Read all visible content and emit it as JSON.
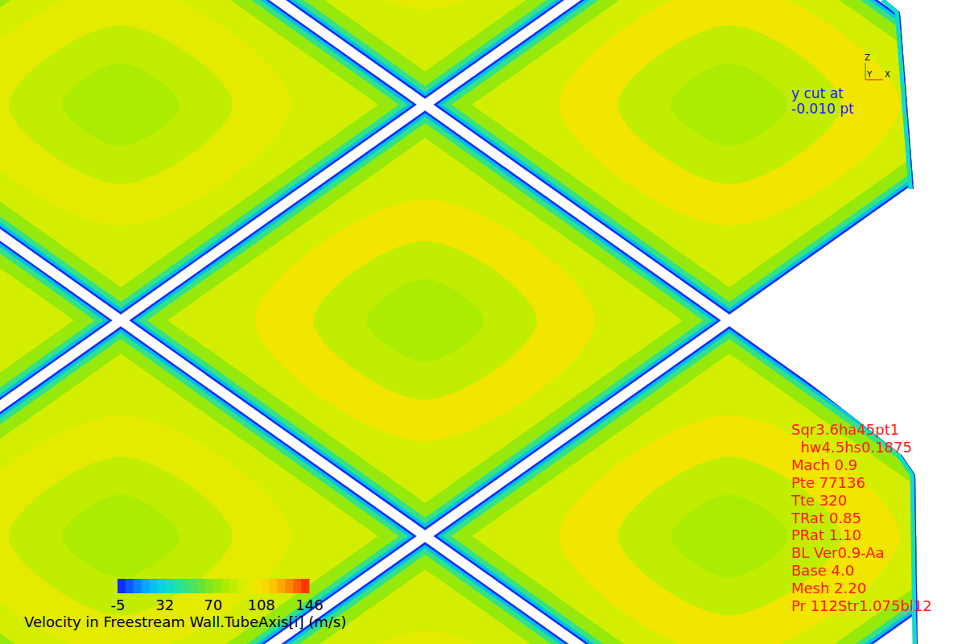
{
  "chart_data": {
    "type": "contour",
    "title": "Velocity in Freestream Wall.TubeAxis[i] (m/s)",
    "annotations": [
      "y cut at",
      "-0.010 pt"
    ],
    "case_info": [
      "Sqr3.6ha45pt1",
      "  hw4.5hs0.1875",
      "Mach 0.9",
      "Pte 77136",
      "Tte 320",
      "TRat 0.85",
      "PRat 1.10",
      "BL Ver0.9-Aa",
      "Base 4.0",
      "Mesh 2.20",
      "Pr 112Str1.075bl12"
    ],
    "axes_triad": [
      "Z",
      "Y",
      "X"
    ],
    "colorbar": {
      "range": [
        -5,
        146
      ],
      "ticks": [
        -5,
        32,
        70,
        108,
        146
      ]
    },
    "cells": [
      {
        "profile": [
          -5,
          25,
          50,
          75,
          95,
          104,
          86,
          78
        ]
      },
      {
        "profile": [
          -5,
          25,
          50,
          75,
          94,
          100,
          84,
          78
        ]
      },
      {
        "profile": [
          -5,
          25,
          50,
          75,
          95,
          104,
          84,
          77
        ]
      },
      {
        "profile": [
          -5,
          25,
          50,
          75,
          94,
          100,
          84,
          78
        ]
      },
      {
        "profile": [
          -5,
          25,
          50,
          75,
          95,
          102,
          84,
          77
        ]
      },
      {
        "profile": [
          -5,
          25,
          50,
          75,
          94,
          100,
          88,
          80
        ]
      },
      {
        "profile": [
          -5,
          25,
          50,
          75,
          94,
          100,
          88,
          80
        ]
      },
      {
        "profile": [
          -5,
          25,
          50,
          75,
          94,
          98,
          86,
          80
        ]
      },
      {
        "profile": [
          -5,
          25,
          50,
          75,
          94,
          98,
          86,
          80
        ]
      }
    ]
  }
}
